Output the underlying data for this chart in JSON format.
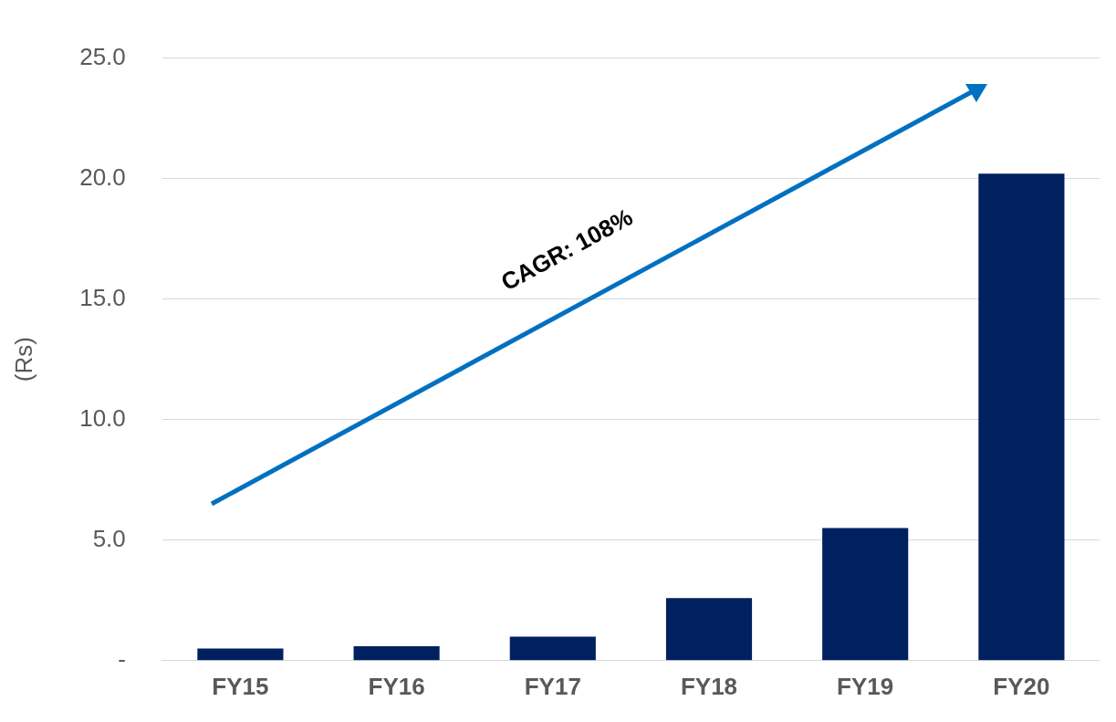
{
  "chart_data": {
    "type": "bar",
    "ylabel": "(Rs)",
    "categories": [
      "FY15",
      "FY16",
      "FY17",
      "FY18",
      "FY19",
      "FY20"
    ],
    "values": [
      0.5,
      0.6,
      1.0,
      2.6,
      5.5,
      20.2
    ],
    "color": "#002060",
    "ylim": [
      0,
      25
    ],
    "yticks": [
      {
        "value": 0,
        "label": "-"
      },
      {
        "value": 5,
        "label": "5.0"
      },
      {
        "value": 10,
        "label": "10.0"
      },
      {
        "value": 15,
        "label": "15.0"
      },
      {
        "value": 20,
        "label": "20.0"
      },
      {
        "value": 25,
        "label": "25.0"
      }
    ],
    "grid": "y",
    "legend": false,
    "annotations": [
      "CAGR: 108%"
    ]
  }
}
